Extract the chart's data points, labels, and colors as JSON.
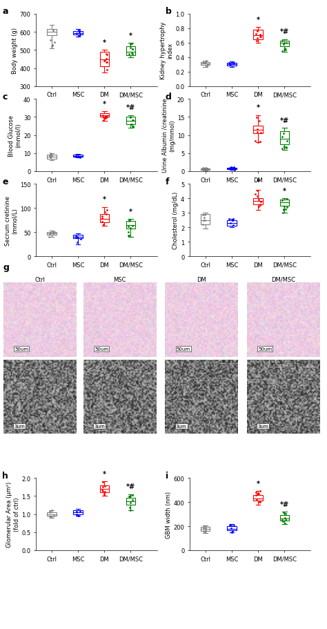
{
  "panel_a": {
    "title": "a",
    "ylabel": "Body weight (g)",
    "ylim": [
      300,
      700
    ],
    "yticks": [
      300,
      400,
      500,
      600,
      700
    ],
    "groups": [
      "Ctrl",
      "MSC",
      "DM",
      "DM/MSC"
    ],
    "colors": [
      "#808080",
      "#0000FF",
      "#FF0000",
      "#008000"
    ],
    "medians": [
      600,
      595,
      450,
      490
    ],
    "q1": [
      580,
      585,
      410,
      470
    ],
    "q3": [
      615,
      605,
      490,
      520
    ],
    "whislo": [
      510,
      575,
      375,
      460
    ],
    "whishi": [
      640,
      615,
      500,
      540
    ],
    "ann_dm": "*",
    "ann_dmmsc": "*"
  },
  "panel_b": {
    "title": "b",
    "ylabel": "Kidney hypertrophy\nindex",
    "ylim": [
      0.0,
      1.0
    ],
    "yticks": [
      0.0,
      0.2,
      0.4,
      0.6,
      0.8,
      1.0
    ],
    "groups": [
      "Ctrl",
      "MSC",
      "DM",
      "DM/MSC"
    ],
    "colors": [
      "#808080",
      "#0000FF",
      "#FF0000",
      "#008000"
    ],
    "medians": [
      0.31,
      0.3,
      0.7,
      0.6
    ],
    "q1": [
      0.29,
      0.28,
      0.65,
      0.55
    ],
    "q3": [
      0.33,
      0.32,
      0.78,
      0.63
    ],
    "whislo": [
      0.27,
      0.27,
      0.6,
      0.48
    ],
    "whishi": [
      0.35,
      0.34,
      0.82,
      0.65
    ],
    "ann_dm": "*",
    "ann_dmmsc": "*#"
  },
  "panel_c": {
    "title": "c",
    "ylabel": "Blood Glucose\n(mmol/l)",
    "ylim": [
      0,
      40
    ],
    "yticks": [
      0,
      10,
      20,
      30,
      40
    ],
    "groups": [
      "Ctrl",
      "MSC",
      "DM",
      "DM/MSC"
    ],
    "colors": [
      "#808080",
      "#0000FF",
      "#FF0000",
      "#008000"
    ],
    "medians": [
      8,
      8.5,
      31,
      28
    ],
    "q1": [
      7,
      8,
      30,
      26
    ],
    "q3": [
      9,
      9,
      32,
      30
    ],
    "whislo": [
      6,
      7.5,
      28,
      24
    ],
    "whishi": [
      10,
      9.5,
      33,
      31
    ],
    "ann_dm": "*",
    "ann_dmmsc": "*#"
  },
  "panel_d": {
    "title": "d",
    "ylabel": "Urine Albumin /creatinine\n(mg/mmol)",
    "ylim": [
      0,
      20
    ],
    "yticks": [
      0,
      5,
      10,
      15,
      20
    ],
    "groups": [
      "Ctrl",
      "MSC",
      "DM",
      "DM/MSC"
    ],
    "colors": [
      "#808080",
      "#0000FF",
      "#FF0000",
      "#008000"
    ],
    "medians": [
      0.5,
      0.8,
      11.5,
      9.0
    ],
    "q1": [
      0.3,
      0.5,
      10.5,
      7.5
    ],
    "q3": [
      0.8,
      1.0,
      12.5,
      11.0
    ],
    "whislo": [
      0.1,
      0.3,
      8.0,
      6.0
    ],
    "whishi": [
      1.0,
      1.2,
      15.5,
      12.0
    ],
    "ann_dm": "*",
    "ann_dmmsc": "*#"
  },
  "panel_e": {
    "title": "e",
    "ylabel": "Secrum cretinine\n(mmol/L)",
    "ylim": [
      0,
      150
    ],
    "yticks": [
      0,
      50,
      100,
      150
    ],
    "groups": [
      "Ctrl",
      "MSC",
      "DM",
      "DM/MSC"
    ],
    "colors": [
      "#808080",
      "#0000FF",
      "#FF0000",
      "#008000"
    ],
    "medians": [
      47,
      40,
      78,
      65
    ],
    "q1": [
      44,
      37,
      70,
      58
    ],
    "q3": [
      50,
      44,
      88,
      73
    ],
    "whislo": [
      40,
      25,
      63,
      40
    ],
    "whishi": [
      53,
      47,
      102,
      77
    ],
    "ann_dm": "*",
    "ann_dmmsc": "*"
  },
  "panel_f": {
    "title": "f",
    "ylabel": "Cholesterol (mg/dL)",
    "ylim": [
      0,
      5
    ],
    "yticks": [
      0,
      1,
      2,
      3,
      4,
      5
    ],
    "groups": [
      "Ctrl",
      "MSC",
      "DM",
      "DM/MSC"
    ],
    "colors": [
      "#808080",
      "#0000FF",
      "#FF0000",
      "#008000"
    ],
    "medians": [
      2.5,
      2.3,
      3.8,
      3.7
    ],
    "q1": [
      2.2,
      2.1,
      3.6,
      3.5
    ],
    "q3": [
      2.9,
      2.5,
      4.0,
      3.9
    ],
    "whislo": [
      1.9,
      2.0,
      3.2,
      3.0
    ],
    "whishi": [
      3.0,
      2.6,
      4.6,
      4.0
    ],
    "ann_dm": "*",
    "ann_dmmsc": "*"
  },
  "panel_h": {
    "title": "h",
    "ylabel": "Glomerular Area (μm²)\n(fold of ctrl)",
    "ylim": [
      0,
      2.0
    ],
    "yticks": [
      0,
      0.5,
      1.0,
      1.5,
      2.0
    ],
    "groups": [
      "Ctrl",
      "MSC",
      "DM",
      "DM/MSC"
    ],
    "colors": [
      "#808080",
      "#0000FF",
      "#FF0000",
      "#008000"
    ],
    "medians": [
      1.0,
      1.05,
      1.7,
      1.35
    ],
    "q1": [
      0.95,
      1.0,
      1.6,
      1.25
    ],
    "q3": [
      1.05,
      1.1,
      1.8,
      1.45
    ],
    "whislo": [
      0.9,
      0.95,
      1.5,
      1.1
    ],
    "whishi": [
      1.1,
      1.15,
      1.9,
      1.55
    ],
    "ann_dm": "*",
    "ann_dmmsc": "*#"
  },
  "panel_i": {
    "title": "i",
    "ylabel": "GBM width (nm)",
    "ylim": [
      0,
      600
    ],
    "yticks": [
      0,
      200,
      400,
      600
    ],
    "groups": [
      "Ctrl",
      "MSC",
      "DM",
      "DM/MSC"
    ],
    "colors": [
      "#808080",
      "#0000FF",
      "#FF0000",
      "#008000"
    ],
    "medians": [
      175,
      180,
      430,
      265
    ],
    "q1": [
      160,
      165,
      410,
      245
    ],
    "q3": [
      195,
      200,
      460,
      290
    ],
    "whislo": [
      145,
      150,
      380,
      215
    ],
    "whishi": [
      205,
      215,
      490,
      320
    ],
    "ann_dm": "*",
    "ann_dmmsc": "*#"
  },
  "image_panels": {
    "g_label": "g",
    "top_labels": [
      "Ctrl",
      "MSC",
      "DM",
      "DM/MSC"
    ],
    "scale_labels": [
      "50um",
      "50um",
      "50um",
      "50um"
    ],
    "em_labels": [
      "3um",
      "3um",
      "3um",
      "3um"
    ]
  }
}
